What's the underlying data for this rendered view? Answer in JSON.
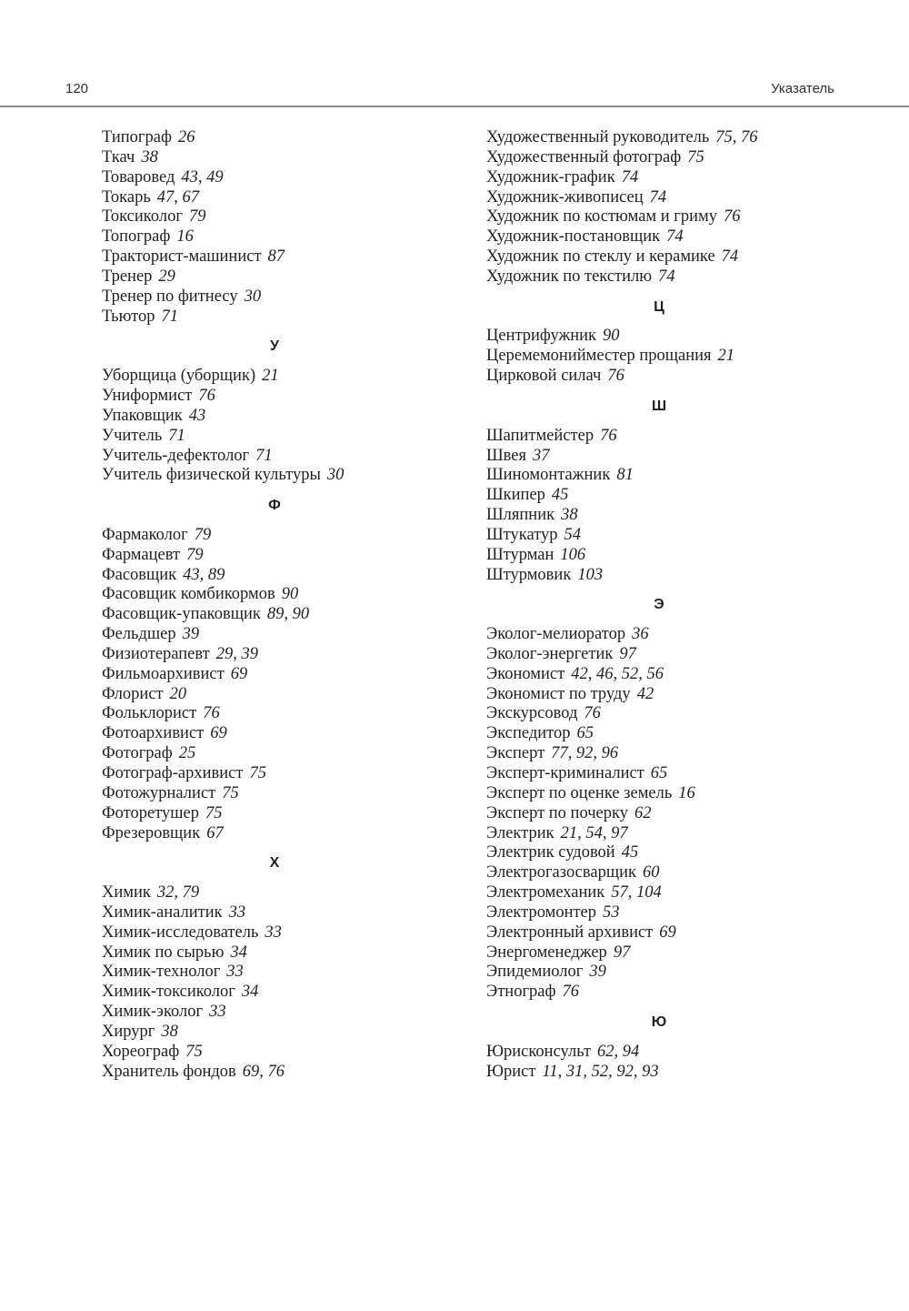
{
  "header": {
    "page_number": "120",
    "section": "Указатель"
  },
  "columns": [
    [
      {
        "name": "Типограф",
        "pages": "26"
      },
      {
        "name": "Ткач",
        "pages": "38"
      },
      {
        "name": "Товаровед",
        "pages": "43, 49"
      },
      {
        "name": "Токарь",
        "pages": "47, 67"
      },
      {
        "name": "Токсиколог",
        "pages": "79"
      },
      {
        "name": "Топограф",
        "pages": "16"
      },
      {
        "name": "Тракторист-машинист",
        "pages": "87"
      },
      {
        "name": "Тренер",
        "pages": "29"
      },
      {
        "name": "Тренер по фитнесу",
        "pages": "30"
      },
      {
        "name": "Тьютор",
        "pages": "71"
      },
      {
        "letter": "У"
      },
      {
        "name": "Уборщица (уборщик)",
        "pages": "21"
      },
      {
        "name": "Униформист",
        "pages": "76"
      },
      {
        "name": "Упаковщик",
        "pages": "43"
      },
      {
        "name": "Учитель",
        "pages": "71"
      },
      {
        "name": "Учитель-дефектолог",
        "pages": "71"
      },
      {
        "name": "Учитель физической культуры",
        "pages": "30"
      },
      {
        "letter": "Ф"
      },
      {
        "name": "Фармаколог",
        "pages": "79"
      },
      {
        "name": "Фармацевт",
        "pages": "79"
      },
      {
        "name": "Фасовщик",
        "pages": "43, 89"
      },
      {
        "name": "Фасовщик комбикормов",
        "pages": "90"
      },
      {
        "name": "Фасовщик-упаковщик",
        "pages": "89, 90"
      },
      {
        "name": "Фельдшер",
        "pages": "39"
      },
      {
        "name": "Физиотерапевт",
        "pages": "29, 39"
      },
      {
        "name": "Фильмоархивист",
        "pages": "69"
      },
      {
        "name": "Флорист",
        "pages": "20"
      },
      {
        "name": "Фольклорист",
        "pages": "76"
      },
      {
        "name": "Фотоархивист",
        "pages": "69"
      },
      {
        "name": "Фотограф",
        "pages": "25"
      },
      {
        "name": "Фотограф-архивист",
        "pages": "75"
      },
      {
        "name": "Фотожурналист",
        "pages": "75"
      },
      {
        "name": "Фоторетушер",
        "pages": "75"
      },
      {
        "name": "Фрезеровщик",
        "pages": "67"
      },
      {
        "letter": "Х"
      },
      {
        "name": "Химик",
        "pages": "32, 79"
      },
      {
        "name": "Химик-аналитик",
        "pages": "33"
      },
      {
        "name": "Химик-исследователь",
        "pages": "33"
      },
      {
        "name": "Химик по сырью",
        "pages": "34"
      },
      {
        "name": "Химик-технолог",
        "pages": "33"
      },
      {
        "name": "Химик-токсиколог",
        "pages": "34"
      },
      {
        "name": "Химик-эколог",
        "pages": "33"
      },
      {
        "name": "Хирург",
        "pages": "38"
      },
      {
        "name": "Хореограф",
        "pages": "75"
      },
      {
        "name": "Хранитель фондов",
        "pages": "69, 76"
      }
    ],
    [
      {
        "name": "Художественный руководитель",
        "pages": "75, 76"
      },
      {
        "name": "Художественный фотограф",
        "pages": "75"
      },
      {
        "name": "Художник-график",
        "pages": "74"
      },
      {
        "name": "Художник-живописец",
        "pages": "74"
      },
      {
        "name": "Художник по костюмам и гриму",
        "pages": "76"
      },
      {
        "name": "Художник-постановщик",
        "pages": "74"
      },
      {
        "name": "Художник по стеклу и керамике",
        "pages": "74"
      },
      {
        "name": "Художник по текстилю",
        "pages": "74"
      },
      {
        "letter": "Ц"
      },
      {
        "name": "Центрифужник",
        "pages": "90"
      },
      {
        "name": "Церемемонийместер прощания",
        "pages": "21"
      },
      {
        "name": "Цирковой силач",
        "pages": "76"
      },
      {
        "letter": "Ш"
      },
      {
        "name": "Шапитмейстер",
        "pages": "76"
      },
      {
        "name": "Швея",
        "pages": "37"
      },
      {
        "name": "Шиномонтажник",
        "pages": "81"
      },
      {
        "name": "Шкипер",
        "pages": "45"
      },
      {
        "name": "Шляпник",
        "pages": "38"
      },
      {
        "name": "Штукатур",
        "pages": "54"
      },
      {
        "name": "Штурман",
        "pages": "106"
      },
      {
        "name": "Штурмовик",
        "pages": "103"
      },
      {
        "letter": "Э"
      },
      {
        "name": "Эколог-мелиоратор",
        "pages": "36"
      },
      {
        "name": "Эколог-энергетик",
        "pages": "97"
      },
      {
        "name": "Экономист",
        "pages": "42, 46, 52, 56"
      },
      {
        "name": "Экономист по труду",
        "pages": "42"
      },
      {
        "name": "Экскурсовод",
        "pages": "76"
      },
      {
        "name": "Экспедитор",
        "pages": "65"
      },
      {
        "name": "Эксперт",
        "pages": "77, 92, 96"
      },
      {
        "name": "Эксперт-криминалист",
        "pages": "65"
      },
      {
        "name": "Эксперт по оценке земель",
        "pages": "16"
      },
      {
        "name": "Эксперт по почерку",
        "pages": "62"
      },
      {
        "name": "Электрик",
        "pages": "21, 54, 97"
      },
      {
        "name": "Электрик судовой",
        "pages": "45"
      },
      {
        "name": "Электрогазосварщик",
        "pages": "60"
      },
      {
        "name": "Электромеханик",
        "pages": "57, 104"
      },
      {
        "name": "Электромонтер",
        "pages": "53"
      },
      {
        "name": "Электронный архивист",
        "pages": "69"
      },
      {
        "name": "Энергоменеджер",
        "pages": "97"
      },
      {
        "name": "Эпидемиолог",
        "pages": "39"
      },
      {
        "name": "Этнограф",
        "pages": "76"
      },
      {
        "letter": "Ю"
      },
      {
        "name": "Юрисконсульт",
        "pages": "62, 94"
      },
      {
        "name": "Юрист",
        "pages": "11, 31, 52, 92, 93"
      }
    ]
  ]
}
